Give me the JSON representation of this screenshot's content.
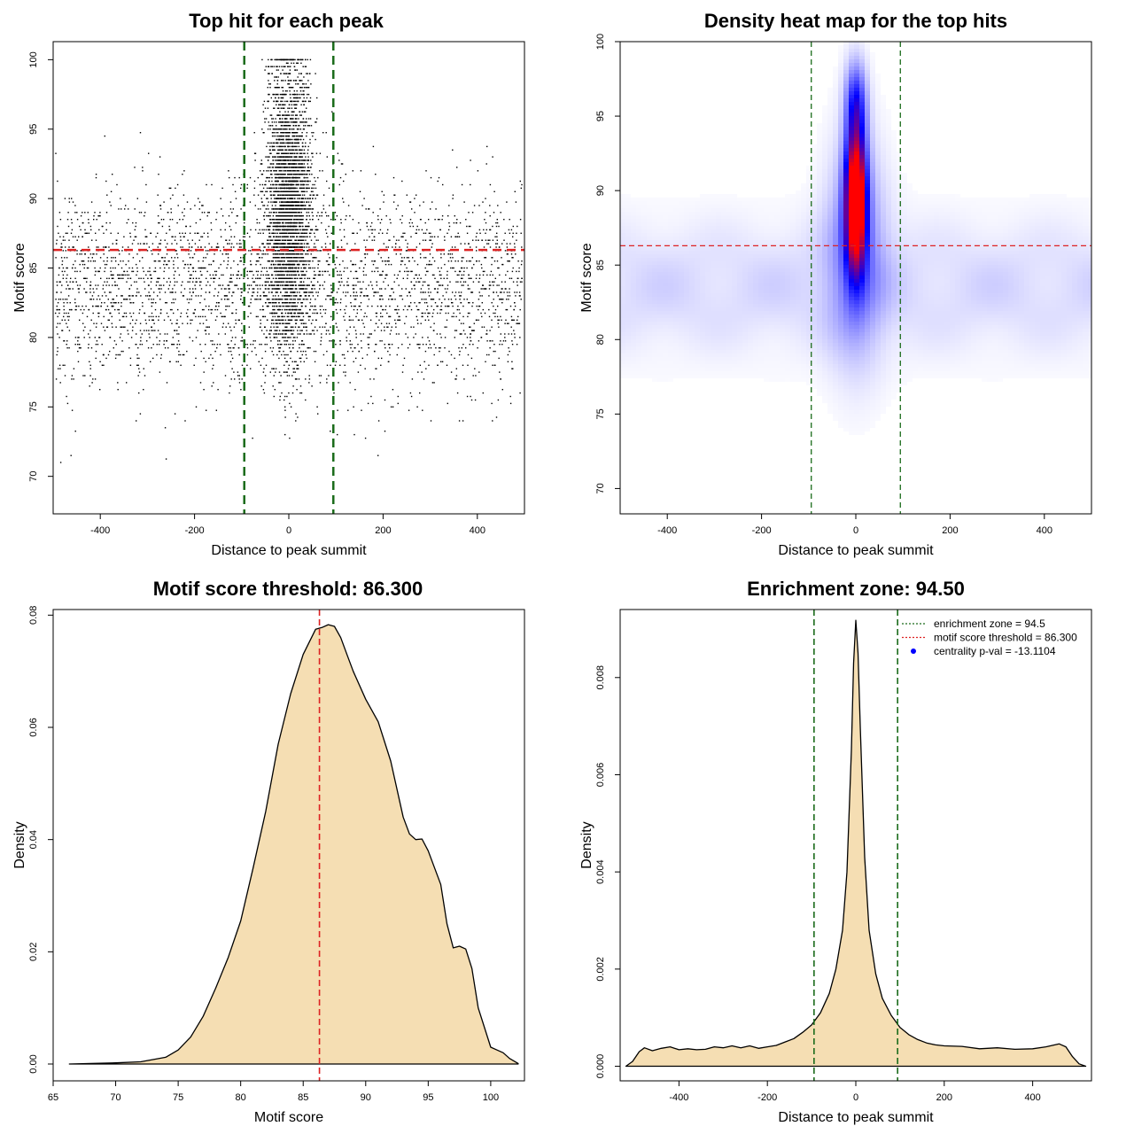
{
  "chart_data": [
    {
      "type": "scatter",
      "title": "Top hit for each peak",
      "xlabel": "Distance to peak summit",
      "ylabel": "Motif score",
      "xlim": [
        -500,
        500
      ],
      "ylim": [
        67.3,
        101.3
      ],
      "xticks": [
        -400,
        -200,
        0,
        200,
        400
      ],
      "yticks": [
        70,
        75,
        80,
        85,
        90,
        95,
        100
      ],
      "hline": {
        "y": 86.3,
        "color": "#dd2222"
      },
      "vlines": {
        "x": [
          -94.5,
          94.5
        ],
        "color": "#1a6b1a"
      },
      "point_color": "#000000"
    },
    {
      "type": "heatmap",
      "title": "Density heat map for the top hits",
      "xlabel": "Distance to peak summit",
      "ylabel": "Motif score",
      "xlim": [
        -500,
        500
      ],
      "ylim": [
        68.3,
        100
      ],
      "xticks": [
        -400,
        -200,
        0,
        200,
        400
      ],
      "yticks": [
        70,
        75,
        80,
        85,
        90,
        95,
        100
      ],
      "hline": {
        "y": 86.3,
        "color": "#dd2222"
      },
      "vlines": {
        "x": [
          -94.5,
          94.5
        ],
        "color": "#1a6b1a"
      },
      "colors": [
        "#ffffff",
        "#0000ff",
        "#ff0000"
      ]
    },
    {
      "type": "area",
      "title": "Motif score threshold: 86.300",
      "xlabel": "Motif score",
      "ylabel": "Density",
      "xlim": [
        65,
        102.7
      ],
      "ylim": [
        -0.003,
        0.081
      ],
      "xticks": [
        65,
        70,
        75,
        80,
        85,
        90,
        95,
        100
      ],
      "yticks": [
        0.0,
        0.02,
        0.04,
        0.06,
        0.08
      ],
      "ytick_labels": [
        "0.00",
        "0.02",
        "0.04",
        "0.06",
        "0.08"
      ],
      "vline": {
        "x": 86.3,
        "color": "#dd2222"
      },
      "fill": "#f5deb3",
      "x": [
        66.3,
        68,
        70,
        72,
        74,
        75,
        76,
        77,
        78,
        79,
        80,
        81,
        82,
        83,
        84,
        85,
        86,
        86.5,
        87,
        87.5,
        88,
        88.5,
        89,
        90,
        91,
        92,
        93,
        93.5,
        94,
        94.5,
        95,
        96,
        96.5,
        97,
        97.5,
        98,
        98.5,
        99,
        100,
        100.5,
        101,
        101.5,
        102.2
      ],
      "y": [
        0.0,
        0.0001,
        0.0002,
        0.0004,
        0.0012,
        0.0025,
        0.0048,
        0.0085,
        0.0135,
        0.019,
        0.0255,
        0.035,
        0.045,
        0.057,
        0.066,
        0.073,
        0.0775,
        0.0778,
        0.0783,
        0.078,
        0.076,
        0.073,
        0.07,
        0.065,
        0.061,
        0.054,
        0.044,
        0.041,
        0.04,
        0.0401,
        0.038,
        0.032,
        0.025,
        0.0207,
        0.021,
        0.0205,
        0.017,
        0.01,
        0.003,
        0.0025,
        0.002,
        0.001,
        0.0001
      ]
    },
    {
      "type": "area",
      "title": "Enrichment zone: 94.50",
      "xlabel": "Distance to peak summit",
      "ylabel": "Density",
      "xlim": [
        -533,
        533
      ],
      "ylim": [
        -0.0003,
        0.0094
      ],
      "xticks": [
        -400,
        -200,
        0,
        200,
        400
      ],
      "yticks": [
        0.0,
        0.002,
        0.004,
        0.006,
        0.008
      ],
      "ytick_labels": [
        "0.000",
        "0.002",
        "0.004",
        "0.006",
        "0.008"
      ],
      "vlines": {
        "x": [
          -94.5,
          94.5
        ],
        "color": "#1a6b1a"
      },
      "fill": "#f5deb3",
      "x": [
        -520,
        -505,
        -490,
        -478,
        -460,
        -440,
        -420,
        -400,
        -380,
        -360,
        -340,
        -320,
        -300,
        -280,
        -260,
        -240,
        -220,
        -200,
        -180,
        -160,
        -140,
        -120,
        -100,
        -80,
        -60,
        -45,
        -30,
        -20,
        -10,
        -5,
        0,
        5,
        10,
        20,
        30,
        45,
        60,
        80,
        100,
        120,
        140,
        160,
        180,
        200,
        240,
        280,
        320,
        360,
        400,
        430,
        460,
        475,
        490,
        505,
        520
      ],
      "y": [
        0.0,
        0.0001,
        0.0003,
        0.00038,
        0.00032,
        0.00037,
        0.0004,
        0.00034,
        0.00036,
        0.00034,
        0.00035,
        0.0004,
        0.00038,
        0.00042,
        0.00038,
        0.00042,
        0.00037,
        0.0004,
        0.00043,
        0.0005,
        0.00057,
        0.0007,
        0.00085,
        0.0011,
        0.0015,
        0.002,
        0.0028,
        0.004,
        0.0065,
        0.0083,
        0.00918,
        0.0085,
        0.007,
        0.0043,
        0.0028,
        0.0019,
        0.0014,
        0.00105,
        0.0008,
        0.00065,
        0.00055,
        0.00048,
        0.00044,
        0.00042,
        0.00041,
        0.00036,
        0.00038,
        0.00035,
        0.00036,
        0.0004,
        0.00046,
        0.0004,
        0.0002,
        5e-05,
        0.0
      ],
      "legend": [
        {
          "label": "enrichment zone = 94.5",
          "color": "#1a6b1a",
          "style": "dotted"
        },
        {
          "label": "motif score threshold = 86.300",
          "color": "#dd2222",
          "style": "dotted"
        },
        {
          "label": "centrality p-val = -13.1104",
          "color": "#0000ff",
          "style": "point"
        }
      ],
      "legend_position": "top-right"
    }
  ]
}
